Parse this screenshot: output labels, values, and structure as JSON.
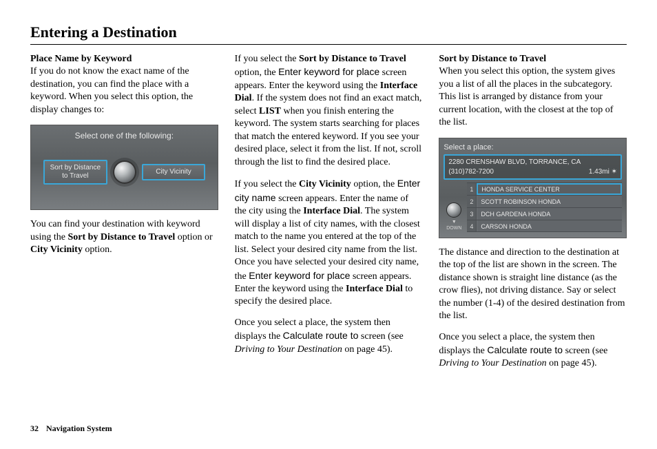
{
  "page": {
    "title": "Entering a Destination",
    "footer_page": "32",
    "footer_section": "Navigation System"
  },
  "col1": {
    "subhead": "Place Name by Keyword",
    "p1": "If you do not know the exact name of the destination, you can find the place with a keyword. When you select this option, the display changes to:",
    "shot1": {
      "title": "Select one of the following:",
      "left": "Sort by Distance\nto Travel",
      "right": "City Vicinity"
    },
    "p2a": "You can find your destination with keyword using the ",
    "p2b_bold": "Sort by Distance to Travel",
    "p2c": " option or ",
    "p2d_bold": "City Vicinity",
    "p2e": " option."
  },
  "col2": {
    "p1a": "If you select the ",
    "p1b_bold": "Sort by Distance to Travel",
    "p1c": " option, the ",
    "p1d_alt": "Enter keyword for place",
    "p1e": " screen appears. Enter the keyword using the ",
    "p1f_bold": "Interface Dial",
    "p1g": ". If the system does not find an exact match, select ",
    "p1h_bold": "LIST",
    "p1i": " when you finish entering the keyword. The system starts searching for places that match the entered keyword. If you see your desired place, select it from the list. If not, scroll through the list to find the desired place.",
    "p2a": "If you select the ",
    "p2b_bold": "City Vicinity",
    "p2c": " option, the ",
    "p2d_alt": "Enter city name",
    "p2e": " screen appears. Enter the name of the city using the ",
    "p2f_bold": "Interface Dial",
    "p2g": ". The system will display a list of city names, with the closest match to the name you entered at the top of the list. Select your desired city name from the list. Once you have selected your desired city name, the ",
    "p2h_alt": "Enter keyword for place",
    "p2i": " screen appears. Enter the keyword using the ",
    "p2j_bold": "Interface Dial",
    "p2k": " to specify the desired place.",
    "p3a": "Once you select a place, the system then displays the ",
    "p3b_alt": "Calculate route to",
    "p3c": " screen (see ",
    "p3d_ital": "Driving to Your Destination",
    "p3e": " on page 45)."
  },
  "col3": {
    "subhead": "Sort by Distance to Travel",
    "p1": "When you select this option, the system gives you a list of all the places in the subcategory. This list is arranged by distance from your current location, with the closest at the top of the list.",
    "shot2": {
      "title": "Select a place:",
      "addr": "2280 CRENSHAW BLVD, TORRANCE, CA",
      "phone": "(310)782-7200",
      "dist": "1.43mi",
      "down": "DOWN",
      "rows": [
        {
          "n": "1",
          "t": "HONDA SERVICE CENTER"
        },
        {
          "n": "2",
          "t": "SCOTT ROBINSON HONDA"
        },
        {
          "n": "3",
          "t": "DCH GARDENA HONDA"
        },
        {
          "n": "4",
          "t": "CARSON HONDA"
        }
      ]
    },
    "p2": "The distance and direction to the destination at the top of the list are shown in the screen. The distance shown is straight line distance (as the crow flies), not driving distance. Say or select the number (1-4) of the desired destination from the list.",
    "p3a": "Once you select a place, the system then displays the ",
    "p3b_alt": "Calculate route to",
    "p3c": " screen (see ",
    "p3d_ital": "Driving to Your Destination",
    "p3e": " on page 45)."
  }
}
